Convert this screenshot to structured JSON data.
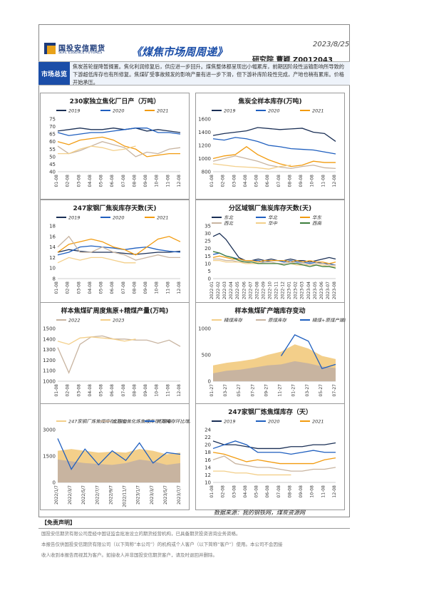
{
  "header": {
    "logo_cn": "国投安信期货",
    "logo_en": "SDIC ESSENCE FUTURES",
    "title": "《煤焦市场周周递》",
    "date": "2023/8/25",
    "author": "研究院   曹颖  Z0012043"
  },
  "overview": {
    "label": "市场总览",
    "text": "焦炭首轮提降暂搁置。焦化利润修复后，供应进一步回升。煤焦整体都呈现出小幅累库，前期因阶段性运输影响所导致的下游超低库存也有所修复。焦煤矿受事故频发的影响产量有进一步下滑，但下游补库阶段性完成，产地也稍有累库。价格开始承压。"
  },
  "colors": {
    "y2019": "#1a2f55",
    "y2020": "#1f5fbf",
    "y2021": "#f29b0f",
    "y2022": "#c8b4a0",
    "y2023": "#f3cf8a"
  },
  "source": "数据来源：我的钢铁网，煤炭资源网",
  "disclaimer": {
    "title": "【免责声明】",
    "lines": [
      "国投安信期货有限公司是经中国证监会批准设立的期货经营机构，已具备期货投资咨询业务资格。",
      "本报告仅供国投安信期货有限公司（以下简称“本公司”）的机构或个人客户（以下简称“客户”）使用。本公司不会因接",
      "收人收到本报告而视其为客户。如接收人并非国投安信期货客户，请及时退回并删除。"
    ]
  },
  "chart_data": [
    {
      "type": "line",
      "title": "230家独立焦化厂日产（万吨）",
      "categories": [
        "01-08",
        "02-08",
        "03-08",
        "04-08",
        "05-08",
        "06-08",
        "07-08",
        "08-08",
        "09-08",
        "10-08",
        "11-08",
        "12-08"
      ],
      "ylim": [
        40,
        75
      ],
      "yticks": [
        40,
        45,
        50,
        55,
        60,
        65,
        70,
        75
      ],
      "series": [
        {
          "name": "2019",
          "color": "#1a2f55",
          "values": [
            67,
            68,
            69,
            68,
            68,
            69,
            68,
            69,
            67,
            68,
            67,
            66
          ]
        },
        {
          "name": "2020",
          "color": "#1f5fbf",
          "values": [
            66,
            64,
            65,
            66,
            66,
            67,
            68,
            69,
            69,
            66,
            66,
            65
          ]
        },
        {
          "name": "2021",
          "color": "#f29b0f",
          "values": [
            60,
            58,
            61,
            62,
            63,
            61,
            57,
            55,
            50,
            51,
            52,
            52
          ]
        },
        {
          "name": "",
          "color": "#c8b4a0",
          "values": [
            57,
            52,
            54,
            57,
            60,
            58,
            56,
            50,
            53,
            52,
            55,
            56
          ]
        },
        {
          "name": "",
          "color": "#f3cf8a",
          "values": [
            52,
            52,
            55,
            57,
            56,
            54,
            55,
            57,
            null,
            null,
            null,
            null
          ]
        }
      ]
    },
    {
      "type": "line",
      "title": "焦炭全样本库存(万吨)",
      "categories": [
        "01-08",
        "02-08",
        "03-08",
        "04-08",
        "05-08",
        "06-08",
        "07-08",
        "08-08",
        "09-08",
        "10-08",
        "11-08",
        "12-08"
      ],
      "ylim": [
        800,
        1600
      ],
      "yticks": [
        800,
        1000,
        1200,
        1400,
        1600
      ],
      "series": [
        {
          "name": "2019",
          "color": "#1a2f55",
          "values": [
            1350,
            1380,
            1400,
            1420,
            1470,
            null,
            1440,
            1450,
            1460,
            1400,
            1380,
            1260
          ]
        },
        {
          "name": "2020",
          "color": "#1f5fbf",
          "values": [
            1300,
            1280,
            1320,
            1300,
            1260,
            1200,
            1180,
            1150,
            1140,
            1130,
            1100,
            1070
          ]
        },
        {
          "name": "2021",
          "color": "#f29b0f",
          "values": [
            1000,
            1040,
            1060,
            1180,
            1060,
            980,
            920,
            880,
            900,
            960,
            940,
            940
          ]
        },
        {
          "name": "",
          "color": "#c8b4a0",
          "values": [
            960,
            1000,
            1040,
            1000,
            960,
            900,
            870,
            850,
            880,
            900,
            860,
            850
          ]
        },
        {
          "name": "",
          "color": "#f3cf8a",
          "values": [
            920,
            900,
            880,
            870,
            860,
            840,
            880,
            900,
            null,
            null,
            null,
            null
          ]
        }
      ]
    },
    {
      "type": "line",
      "title": "247家钢厂焦炭库存天数(天)",
      "categories": [
        "01-08",
        "02-08",
        "03-08",
        "04-08",
        "05-08",
        "06-08",
        "07-08",
        "08-08",
        "09-08",
        "10-08",
        "11-08",
        "12-08"
      ],
      "ylim": [
        8,
        18
      ],
      "yticks": [
        8,
        10,
        12,
        14,
        16,
        18
      ],
      "series": [
        {
          "name": "2019",
          "color": "#1a2f55",
          "values": [
            13,
            13.5,
            13.2,
            13,
            13,
            13,
            12.8,
            12.6,
            12.8,
            13,
            13,
            13.2
          ]
        },
        {
          "name": "2020",
          "color": "#1f5fbf",
          "values": [
            12.5,
            13,
            14,
            14.2,
            14,
            13.8,
            13.5,
            13.8,
            14,
            13.5,
            13.2,
            13
          ]
        },
        {
          "name": "2021",
          "color": "#f29b0f",
          "values": [
            13,
            14.5,
            15,
            15.5,
            15,
            14,
            13.5,
            12.5,
            14,
            15.5,
            16,
            15
          ]
        },
        {
          "name": "",
          "color": "#c8b4a0",
          "values": [
            14,
            16,
            13,
            13,
            14,
            13,
            12.5,
            11.5,
            12,
            12.5,
            12,
            12
          ]
        },
        {
          "name": "",
          "color": "#f3cf8a",
          "values": [
            11,
            12,
            11.5,
            12,
            12,
            11.5,
            11,
            11,
            null,
            null,
            null,
            null
          ]
        }
      ]
    },
    {
      "type": "line",
      "title": "分区域钢厂焦炭库存天数(天)",
      "categories": [
        "2022-01",
        "2022-02",
        "2022-03",
        "2022-04",
        "2022-05",
        "2022-06",
        "2022-07",
        "2022-08",
        "2022-09",
        "2022-10",
        "2022-11",
        "2022-12",
        "2023-01",
        "2023-02",
        "2023-03",
        "2023-04",
        "2023-05",
        "2023-06",
        "2023-07",
        "2023-08"
      ],
      "ylim": [
        0,
        35
      ],
      "yticks": [
        0,
        5,
        10,
        15,
        20,
        25,
        30,
        35
      ],
      "series": [
        {
          "name": "东北",
          "color": "#1a2f55",
          "values": [
            28,
            30,
            26,
            20,
            14,
            12,
            12,
            13,
            12,
            13,
            12,
            12,
            13,
            12,
            12,
            11,
            12,
            13,
            14,
            13
          ]
        },
        {
          "name": "华北",
          "color": "#1f5fbf",
          "values": [
            16,
            17,
            15,
            14,
            13,
            12,
            12,
            12,
            11,
            12,
            12,
            11,
            12,
            11,
            11,
            10,
            11,
            10,
            10,
            9
          ]
        },
        {
          "name": "华东",
          "color": "#f29b0f",
          "values": [
            14,
            15,
            14,
            13,
            13,
            12,
            12,
            11,
            12,
            12,
            12,
            12,
            11,
            12,
            11,
            12,
            11,
            11,
            10,
            11
          ]
        },
        {
          "name": "西北",
          "color": "#c8b4a0",
          "values": [
            13,
            13,
            12,
            12,
            11,
            11,
            10,
            10,
            11,
            11,
            10,
            10,
            11,
            10,
            10,
            9,
            10,
            10,
            9,
            9
          ]
        },
        {
          "name": "华中",
          "color": "#f3cf8a",
          "values": [
            12,
            12,
            11,
            11,
            11,
            10,
            10,
            10,
            10,
            10,
            10,
            9,
            10,
            9,
            9,
            9,
            9,
            9,
            8,
            8
          ]
        },
        {
          "name": "西南",
          "color": "#3c7d3c",
          "values": [
            18,
            17,
            15,
            14,
            12,
            11,
            11,
            10,
            10,
            10,
            10,
            9,
            10,
            10,
            9,
            8,
            9,
            8,
            8,
            7
          ]
        }
      ]
    },
    {
      "type": "line",
      "title": "样本焦煤矿周度焦原+精煤产量(万吨)",
      "categories": [
        "01-08",
        "02-08",
        "03-08",
        "04-08",
        "05-08",
        "06-08",
        "07-08",
        "08-08",
        "09-08",
        "10-08",
        "11-08",
        "12-08"
      ],
      "ylim": [
        1000,
        1500
      ],
      "yticks": [
        1000,
        1100,
        1200,
        1300,
        1400,
        1500
      ],
      "series": [
        {
          "name": "2022",
          "color": "#c8b4a0",
          "values": [
            1320,
            1080,
            1350,
            1420,
            1430,
            1400,
            1400,
            1390,
            1390,
            1360,
            1390,
            1330
          ]
        },
        {
          "name": "2023",
          "color": "#f3cf8a",
          "values": [
            1380,
            1350,
            1410,
            1420,
            1410,
            1400,
            1380,
            1400,
            null,
            null,
            null,
            null
          ]
        }
      ]
    },
    {
      "type": "area",
      "title": "样本焦煤矿产端库存变动",
      "categories": [
        "01-27",
        "03-27",
        "05-27",
        "07-27",
        "09-27",
        "11-27",
        "01-27",
        "03-27",
        "05-27",
        "07-27"
      ],
      "ylim": [
        0,
        1000
      ],
      "y2lim": [
        -100,
        150
      ],
      "series": [
        {
          "name": "精煤库存",
          "color": "#f3cf8a",
          "values": [
            300,
            350,
            380,
            420,
            500,
            560,
            700,
            620,
            480,
            420
          ]
        },
        {
          "name": "原煤库存",
          "color": "#c8b4a0",
          "values": [
            150,
            200,
            220,
            260,
            300,
            320,
            380,
            340,
            280,
            250
          ]
        },
        {
          "name": "精煤+原煤产端库存环比",
          "color": "#1f5fbf",
          "axis": "right",
          "values": [
            null,
            null,
            null,
            null,
            null,
            20,
            120,
            90,
            -40,
            -20
          ]
        }
      ]
    },
    {
      "type": "area",
      "title": "",
      "categories": [
        "2022/1/7",
        "2022/3/7",
        "2022/5/7",
        "2022/7/7",
        "2022/9/7",
        "2022/11/7",
        "2023/1/7",
        "2023/3/7",
        "2023/5/7",
        "2023/7/7"
      ],
      "ylim": [
        0,
        3000
      ],
      "y2lim": [
        -300,
        300
      ],
      "series": [
        {
          "name": "247家钢厂炼焦煤库存(万吨)",
          "color": "#f3cf8a",
          "values": [
            1800,
            1900,
            1800,
            1700,
            1750,
            1700,
            1900,
            1800,
            1600,
            1700
          ]
        },
        {
          "name": "全独立焦化炼焦煤库存(万吨)",
          "color": "#c8b4a0",
          "values": [
            1300,
            1200,
            1100,
            1050,
            1000,
            1100,
            1300,
            1200,
            1000,
            1100
          ]
        },
        {
          "name": "终端库存环比增减(右，万吨)",
          "color": "#1f5fbf",
          "axis": "right",
          "values": [
            200,
            -150,
            80,
            -100,
            60,
            -50,
            150,
            -80,
            40,
            20
          ]
        }
      ]
    },
    {
      "type": "line",
      "title": "247家钢厂炼焦煤库存（天）",
      "categories": [
        "01-08",
        "02-08",
        "03-08",
        "04-08",
        "05-08",
        "06-08",
        "07-08",
        "08-08",
        "09-08",
        "10-08",
        "11-08",
        "12-08"
      ],
      "ylim": [
        10,
        24
      ],
      "yticks": [
        10,
        12,
        14,
        16,
        18,
        20,
        22,
        24
      ],
      "series": [
        {
          "name": "2019",
          "color": "#1a2f55",
          "values": [
            21,
            20,
            20,
            19.5,
            19,
            19,
            19,
            19.5,
            19.5,
            20,
            20,
            20.5
          ]
        },
        {
          "name": "2020",
          "color": "#1f5fbf",
          "values": [
            19,
            20,
            21,
            20,
            18,
            18,
            18,
            17.5,
            18,
            18.5,
            18,
            18
          ]
        },
        {
          "name": "2021",
          "color": "#f29b0f",
          "values": [
            18,
            17.5,
            16.5,
            15.5,
            16,
            15.5,
            15,
            15,
            15,
            15,
            16,
            16.5
          ]
        },
        {
          "name": "",
          "color": "#c8b4a0",
          "values": [
            16,
            17,
            15,
            14.5,
            14,
            14,
            13.5,
            13,
            13,
            13.5,
            13.5,
            14
          ]
        },
        {
          "name": "",
          "color": "#f3cf8a",
          "values": [
            13,
            13,
            12.5,
            12.5,
            12,
            12,
            12,
            12,
            null,
            null,
            null,
            null
          ]
        }
      ]
    }
  ]
}
